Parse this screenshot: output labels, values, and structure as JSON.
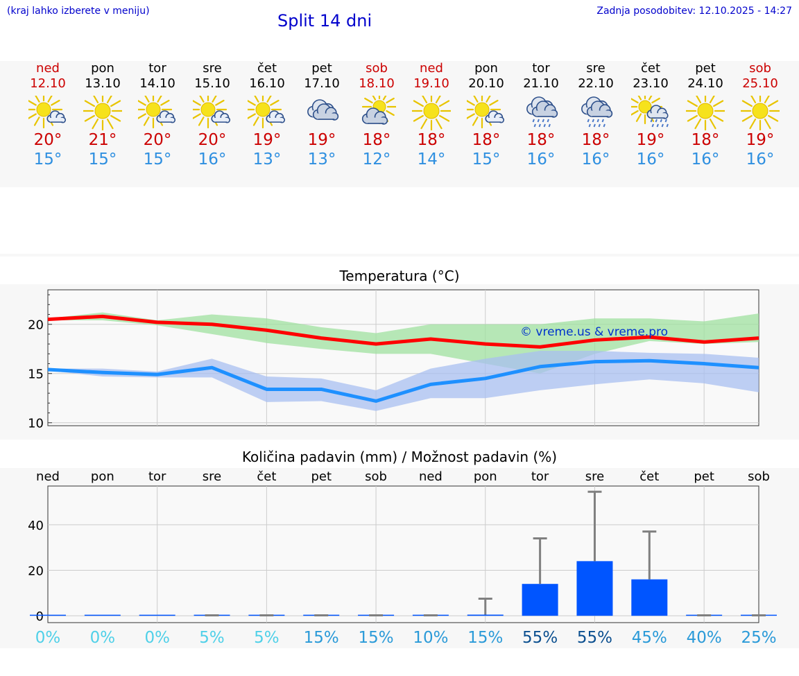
{
  "header": {
    "menu_hint": "(kraj lahko izberete v meniju)",
    "title": "Split 14 dni",
    "updated": "Zadnja posodobitev: 12.10.2025 - 14:27"
  },
  "days": [
    {
      "name": "ned",
      "date": "12.10",
      "weekend": true,
      "icon": "sun-partly-cloudy-icon",
      "tmax": "20°",
      "tmin": "15°"
    },
    {
      "name": "pon",
      "date": "13.10",
      "weekend": false,
      "icon": "sun-icon",
      "tmax": "21°",
      "tmin": "15°"
    },
    {
      "name": "tor",
      "date": "14.10",
      "weekend": false,
      "icon": "sun-partly-cloudy-icon",
      "tmax": "20°",
      "tmin": "15°"
    },
    {
      "name": "sre",
      "date": "15.10",
      "weekend": false,
      "icon": "sun-partly-cloudy-icon",
      "tmax": "20°",
      "tmin": "16°"
    },
    {
      "name": "čet",
      "date": "16.10",
      "weekend": false,
      "icon": "sun-partly-cloudy-icon",
      "tmax": "19°",
      "tmin": "13°"
    },
    {
      "name": "pet",
      "date": "17.10",
      "weekend": false,
      "icon": "cloudy-icon",
      "tmax": "19°",
      "tmin": "13°"
    },
    {
      "name": "sob",
      "date": "18.10",
      "weekend": true,
      "icon": "cloudy-sun-icon",
      "tmax": "18°",
      "tmin": "12°"
    },
    {
      "name": "ned",
      "date": "19.10",
      "weekend": true,
      "icon": "sun-icon",
      "tmax": "18°",
      "tmin": "14°"
    },
    {
      "name": "pon",
      "date": "20.10",
      "weekend": false,
      "icon": "sun-partly-cloudy-icon",
      "tmax": "18°",
      "tmin": "15°"
    },
    {
      "name": "tor",
      "date": "21.10",
      "weekend": false,
      "icon": "rain-cloud-icon",
      "tmax": "18°",
      "tmin": "16°"
    },
    {
      "name": "sre",
      "date": "22.10",
      "weekend": false,
      "icon": "rain-cloud-icon",
      "tmax": "18°",
      "tmin": "16°"
    },
    {
      "name": "čet",
      "date": "23.10",
      "weekend": false,
      "icon": "sun-rain-icon",
      "tmax": "19°",
      "tmin": "16°"
    },
    {
      "name": "pet",
      "date": "24.10",
      "weekend": false,
      "icon": "sun-icon",
      "tmax": "18°",
      "tmin": "16°"
    },
    {
      "name": "sob",
      "date": "25.10",
      "weekend": true,
      "icon": "sun-icon",
      "tmax": "19°",
      "tmin": "16°"
    }
  ],
  "colors": {
    "weekend": "#cc0000",
    "tmax_line": "#ff0000",
    "tmin_line": "#1e90ff",
    "tmax_band": "#9fe09f",
    "tmin_band": "#a8bff0",
    "bar": "#0055ff",
    "whisker": "#808080"
  },
  "chart_data": [
    {
      "type": "line",
      "title": "Temperatura (°C)",
      "watermark": "© vreme.us & vreme.pro",
      "x": [
        "12.10",
        "13.10",
        "14.10",
        "15.10",
        "16.10",
        "17.10",
        "18.10",
        "19.10",
        "20.10",
        "21.10",
        "22.10",
        "23.10",
        "24.10",
        "25.10"
      ],
      "ylim": [
        9.7,
        23.5
      ],
      "yticks": [
        10,
        15,
        20
      ],
      "grid": true,
      "series": [
        {
          "values": [
            20.5,
            20.8,
            20.2,
            20.0,
            19.4,
            18.6,
            18.0,
            18.5,
            18.0,
            17.7,
            18.4,
            18.7,
            18.2,
            18.6
          ]
        },
        {
          "values": [
            15.4,
            15.1,
            14.9,
            15.6,
            13.4,
            13.4,
            12.2,
            13.9,
            14.5,
            15.7,
            16.2,
            16.3,
            16.0,
            15.6
          ]
        }
      ],
      "bands": [
        {
          "upper": [
            20.6,
            21.2,
            20.4,
            21.0,
            20.6,
            19.7,
            19.1,
            20.0,
            20.0,
            20.0,
            20.6,
            20.6,
            20.3,
            21.1
          ],
          "lower": [
            20.4,
            20.4,
            19.9,
            19.0,
            18.1,
            17.5,
            17.0,
            17.0,
            16.0,
            15.0,
            17.0,
            18.3,
            18.0,
            18.2
          ]
        },
        {
          "upper": [
            15.5,
            15.5,
            15.2,
            16.5,
            14.7,
            14.5,
            13.3,
            15.5,
            16.5,
            17.3,
            17.3,
            17.1,
            17.0,
            16.6
          ],
          "lower": [
            15.3,
            14.7,
            14.6,
            14.6,
            12.1,
            12.2,
            11.2,
            12.5,
            12.5,
            13.3,
            13.9,
            14.4,
            14.0,
            13.1
          ]
        }
      ]
    },
    {
      "type": "bar",
      "title": "Količina padavin (mm) / Možnost padavin (%)",
      "categories": [
        "ned",
        "pon",
        "tor",
        "sre",
        "čet",
        "pet",
        "sob",
        "ned",
        "pon",
        "tor",
        "sre",
        "čet",
        "pet",
        "sob"
      ],
      "values": [
        0,
        0,
        0,
        0,
        0,
        0,
        0,
        0,
        0.5,
        14.0,
        24.0,
        16.0,
        0,
        0
      ],
      "whisker_high": [
        0,
        0,
        0,
        0.2,
        0.2,
        0.2,
        0.2,
        0.2,
        7.5,
        34.0,
        54.5,
        37.0,
        0.2,
        0.2
      ],
      "probabilities": [
        "0%",
        "0%",
        "0%",
        "5%",
        "5%",
        "15%",
        "15%",
        "10%",
        "15%",
        "55%",
        "55%",
        "45%",
        "40%",
        "25%"
      ],
      "probability_levels": [
        0,
        0,
        0,
        5,
        5,
        15,
        15,
        10,
        15,
        55,
        55,
        45,
        40,
        25
      ],
      "ylim": [
        -3,
        57
      ],
      "yticks": [
        0,
        20,
        40
      ],
      "grid": true
    }
  ]
}
